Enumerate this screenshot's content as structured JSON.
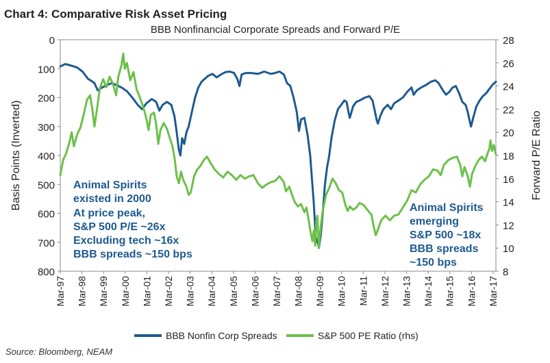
{
  "header": {
    "chart_label": "Chart 4: Comparative Risk Asset Pricing"
  },
  "source": "Source: Bloomberg, NEAM",
  "colors": {
    "spreads": "#1d5a8f",
    "pe": "#6cc04a",
    "annotation": "#1d5a8f",
    "text": "#222222",
    "axis": "#666666"
  },
  "chart_data": {
    "type": "line",
    "title": "BBB Nonfinancial Corporate Spreads and Forward P/E",
    "ylabel": "Basis Points (Inverted)",
    "y2label": "Forward P/E Ratio",
    "ylim": [
      0,
      800
    ],
    "y_inverted": true,
    "y2lim": [
      8,
      28
    ],
    "xlim": [
      1997.17,
      2017.3
    ],
    "y_ticks": [
      "0",
      "100",
      "200",
      "300",
      "400",
      "500",
      "600",
      "700",
      "800"
    ],
    "y2_ticks": [
      "8",
      "10",
      "12",
      "14",
      "16",
      "18",
      "20",
      "22",
      "24",
      "26",
      "28"
    ],
    "x_ticks": [
      {
        "label": "Mar-97",
        "x": 1997.17
      },
      {
        "label": "Mar-98",
        "x": 1998.17
      },
      {
        "label": "Mar-99",
        "x": 1999.17
      },
      {
        "label": "Mar-00",
        "x": 2000.17
      },
      {
        "label": "Mar-01",
        "x": 2001.17
      },
      {
        "label": "Mar-02",
        "x": 2002.17
      },
      {
        "label": "Mar-03",
        "x": 2003.17
      },
      {
        "label": "Mar-04",
        "x": 2004.17
      },
      {
        "label": "Mar-05",
        "x": 2005.17
      },
      {
        "label": "Mar-06",
        "x": 2006.17
      },
      {
        "label": "Mar-07",
        "x": 2007.17
      },
      {
        "label": "Mar-08",
        "x": 2008.17
      },
      {
        "label": "Mar-09",
        "x": 2009.17
      },
      {
        "label": "Mar-10",
        "x": 2010.17
      },
      {
        "label": "Mar-11",
        "x": 2011.17
      },
      {
        "label": "Mar-12",
        "x": 2012.17
      },
      {
        "label": "Mar-13",
        "x": 2013.17
      },
      {
        "label": "Mar-14",
        "x": 2014.17
      },
      {
        "label": "Mar-15",
        "x": 2015.17
      },
      {
        "label": "Mar-16",
        "x": 2016.17
      },
      {
        "label": "Mar-17",
        "x": 2017.17
      }
    ],
    "series": [
      {
        "name": "BBB Nonfin Corp Spreads",
        "axis": "left",
        "color": "#1d5a8f",
        "points": [
          [
            1997.17,
            92
          ],
          [
            1997.4,
            84
          ],
          [
            1997.7,
            90
          ],
          [
            1997.95,
            96
          ],
          [
            1998.2,
            110
          ],
          [
            1998.45,
            135
          ],
          [
            1998.6,
            142
          ],
          [
            1998.75,
            150
          ],
          [
            1998.9,
            175
          ],
          [
            1999.1,
            165
          ],
          [
            1999.3,
            158
          ],
          [
            1999.55,
            150
          ],
          [
            1999.8,
            158
          ],
          [
            2000.0,
            165
          ],
          [
            2000.25,
            178
          ],
          [
            2000.5,
            200
          ],
          [
            2000.75,
            225
          ],
          [
            2000.95,
            240
          ],
          [
            2001.15,
            220
          ],
          [
            2001.4,
            205
          ],
          [
            2001.6,
            215
          ],
          [
            2001.75,
            245
          ],
          [
            2001.9,
            225
          ],
          [
            2002.1,
            215
          ],
          [
            2002.3,
            225
          ],
          [
            2002.45,
            265
          ],
          [
            2002.55,
            320
          ],
          [
            2002.65,
            380
          ],
          [
            2002.72,
            400
          ],
          [
            2002.8,
            340
          ],
          [
            2002.9,
            360
          ],
          [
            2003.0,
            320
          ],
          [
            2003.1,
            300
          ],
          [
            2003.25,
            250
          ],
          [
            2003.4,
            200
          ],
          [
            2003.55,
            165
          ],
          [
            2003.7,
            145
          ],
          [
            2003.85,
            135
          ],
          [
            2004.0,
            125
          ],
          [
            2004.2,
            118
          ],
          [
            2004.4,
            130
          ],
          [
            2004.6,
            120
          ],
          [
            2004.8,
            112
          ],
          [
            2005.0,
            110
          ],
          [
            2005.2,
            115
          ],
          [
            2005.35,
            135
          ],
          [
            2005.45,
            160
          ],
          [
            2005.55,
            120
          ],
          [
            2005.75,
            115
          ],
          [
            2006.0,
            115
          ],
          [
            2006.3,
            118
          ],
          [
            2006.6,
            110
          ],
          [
            2006.9,
            118
          ],
          [
            2007.1,
            115
          ],
          [
            2007.3,
            110
          ],
          [
            2007.5,
            120
          ],
          [
            2007.65,
            150
          ],
          [
            2007.8,
            160
          ],
          [
            2007.95,
            200
          ],
          [
            2008.1,
            250
          ],
          [
            2008.2,
            315
          ],
          [
            2008.3,
            275
          ],
          [
            2008.45,
            270
          ],
          [
            2008.6,
            330
          ],
          [
            2008.72,
            400
          ],
          [
            2008.8,
            480
          ],
          [
            2008.88,
            560
          ],
          [
            2008.95,
            650
          ],
          [
            2009.0,
            700
          ],
          [
            2009.05,
            690
          ],
          [
            2009.12,
            720
          ],
          [
            2009.2,
            680
          ],
          [
            2009.3,
            600
          ],
          [
            2009.4,
            500
          ],
          [
            2009.5,
            440
          ],
          [
            2009.6,
            400
          ],
          [
            2009.7,
            340
          ],
          [
            2009.85,
            280
          ],
          [
            2010.0,
            240
          ],
          [
            2010.15,
            225
          ],
          [
            2010.3,
            210
          ],
          [
            2010.4,
            215
          ],
          [
            2010.5,
            255
          ],
          [
            2010.55,
            270
          ],
          [
            2010.7,
            230
          ],
          [
            2010.85,
            215
          ],
          [
            2011.0,
            210
          ],
          [
            2011.25,
            200
          ],
          [
            2011.45,
            195
          ],
          [
            2011.6,
            210
          ],
          [
            2011.7,
            245
          ],
          [
            2011.8,
            280
          ],
          [
            2011.85,
            290
          ],
          [
            2011.95,
            265
          ],
          [
            2012.1,
            240
          ],
          [
            2012.3,
            225
          ],
          [
            2012.45,
            240
          ],
          [
            2012.6,
            220
          ],
          [
            2012.8,
            210
          ],
          [
            2013.0,
            200
          ],
          [
            2013.2,
            180
          ],
          [
            2013.4,
            165
          ],
          [
            2013.5,
            190
          ],
          [
            2013.65,
            175
          ],
          [
            2013.85,
            165
          ],
          [
            2014.1,
            155
          ],
          [
            2014.3,
            145
          ],
          [
            2014.5,
            140
          ],
          [
            2014.65,
            150
          ],
          [
            2014.85,
            175
          ],
          [
            2015.0,
            190
          ],
          [
            2015.15,
            180
          ],
          [
            2015.3,
            165
          ],
          [
            2015.45,
            160
          ],
          [
            2015.6,
            185
          ],
          [
            2015.75,
            215
          ],
          [
            2015.9,
            225
          ],
          [
            2016.0,
            250
          ],
          [
            2016.1,
            285
          ],
          [
            2016.15,
            300
          ],
          [
            2016.25,
            270
          ],
          [
            2016.4,
            230
          ],
          [
            2016.55,
            210
          ],
          [
            2016.7,
            195
          ],
          [
            2016.85,
            185
          ],
          [
            2017.0,
            170
          ],
          [
            2017.15,
            155
          ],
          [
            2017.3,
            145
          ]
        ]
      },
      {
        "name": "S&P 500 PE Ratio (rhs)",
        "axis": "right",
        "color": "#6cc04a",
        "points": [
          [
            1997.17,
            16.3
          ],
          [
            1997.3,
            17.6
          ],
          [
            1997.45,
            18.2
          ],
          [
            1997.6,
            19.2
          ],
          [
            1997.7,
            20.0
          ],
          [
            1997.8,
            18.8
          ],
          [
            1997.95,
            19.8
          ],
          [
            1998.1,
            20.4
          ],
          [
            1998.25,
            21.5
          ],
          [
            1998.4,
            22.8
          ],
          [
            1998.55,
            23.2
          ],
          [
            1998.65,
            22.0
          ],
          [
            1998.75,
            20.5
          ],
          [
            1998.85,
            21.8
          ],
          [
            1999.0,
            23.8
          ],
          [
            1999.15,
            24.6
          ],
          [
            1999.3,
            23.9
          ],
          [
            1999.45,
            24.8
          ],
          [
            1999.6,
            24.2
          ],
          [
            1999.75,
            23.2
          ],
          [
            1999.85,
            24.8
          ],
          [
            2000.0,
            25.8
          ],
          [
            2000.08,
            26.8
          ],
          [
            2000.15,
            25.5
          ],
          [
            2000.25,
            26.0
          ],
          [
            2000.4,
            24.5
          ],
          [
            2000.55,
            25.2
          ],
          [
            2000.7,
            23.7
          ],
          [
            2000.85,
            23.0
          ],
          [
            2001.0,
            22.2
          ],
          [
            2001.15,
            21.2
          ],
          [
            2001.25,
            20.2
          ],
          [
            2001.35,
            21.5
          ],
          [
            2001.5,
            21.7
          ],
          [
            2001.6,
            20.7
          ],
          [
            2001.7,
            19.0
          ],
          [
            2001.8,
            20.2
          ],
          [
            2001.95,
            20.8
          ],
          [
            2002.1,
            20.3
          ],
          [
            2002.2,
            19.7
          ],
          [
            2002.35,
            18.8
          ],
          [
            2002.45,
            17.8
          ],
          [
            2002.55,
            16.2
          ],
          [
            2002.65,
            15.6
          ],
          [
            2002.75,
            16.6
          ],
          [
            2002.85,
            15.9
          ],
          [
            2003.0,
            15.3
          ],
          [
            2003.1,
            14.6
          ],
          [
            2003.2,
            14.8
          ],
          [
            2003.35,
            16.2
          ],
          [
            2003.5,
            16.8
          ],
          [
            2003.65,
            17.1
          ],
          [
            2003.8,
            17.6
          ],
          [
            2003.95,
            17.9
          ],
          [
            2004.1,
            17.4
          ],
          [
            2004.3,
            16.8
          ],
          [
            2004.5,
            16.4
          ],
          [
            2004.7,
            16.1
          ],
          [
            2004.9,
            16.6
          ],
          [
            2005.1,
            16.3
          ],
          [
            2005.3,
            15.9
          ],
          [
            2005.5,
            16.3
          ],
          [
            2005.7,
            16.0
          ],
          [
            2005.9,
            16.2
          ],
          [
            2006.1,
            16.3
          ],
          [
            2006.3,
            15.6
          ],
          [
            2006.5,
            15.2
          ],
          [
            2006.7,
            15.5
          ],
          [
            2006.9,
            15.7
          ],
          [
            2007.1,
            15.8
          ],
          [
            2007.3,
            16.2
          ],
          [
            2007.5,
            15.7
          ],
          [
            2007.6,
            14.9
          ],
          [
            2007.75,
            15.3
          ],
          [
            2007.9,
            14.5
          ],
          [
            2008.0,
            14.0
          ],
          [
            2008.15,
            13.6
          ],
          [
            2008.3,
            13.8
          ],
          [
            2008.45,
            13.1
          ],
          [
            2008.55,
            13.5
          ],
          [
            2008.65,
            12.4
          ],
          [
            2008.75,
            11.2
          ],
          [
            2008.82,
            10.6
          ],
          [
            2008.88,
            11.5
          ],
          [
            2008.95,
            10.2
          ],
          [
            2009.0,
            12.3
          ],
          [
            2009.05,
            12.8
          ],
          [
            2009.12,
            10.0
          ],
          [
            2009.2,
            11.8
          ],
          [
            2009.3,
            13.2
          ],
          [
            2009.45,
            14.6
          ],
          [
            2009.6,
            15.2
          ],
          [
            2009.75,
            16.0
          ],
          [
            2009.9,
            15.6
          ],
          [
            2010.05,
            15.0
          ],
          [
            2010.2,
            14.8
          ],
          [
            2010.35,
            13.7
          ],
          [
            2010.45,
            13.2
          ],
          [
            2010.55,
            13.6
          ],
          [
            2010.7,
            13.3
          ],
          [
            2010.85,
            13.5
          ],
          [
            2011.0,
            13.9
          ],
          [
            2011.2,
            13.7
          ],
          [
            2011.4,
            13.2
          ],
          [
            2011.55,
            12.9
          ],
          [
            2011.65,
            11.9
          ],
          [
            2011.75,
            11.1
          ],
          [
            2011.85,
            11.6
          ],
          [
            2012.0,
            12.4
          ],
          [
            2012.2,
            12.8
          ],
          [
            2012.4,
            12.4
          ],
          [
            2012.6,
            12.8
          ],
          [
            2012.8,
            12.9
          ],
          [
            2013.0,
            13.5
          ],
          [
            2013.2,
            14.1
          ],
          [
            2013.4,
            15.0
          ],
          [
            2013.6,
            14.8
          ],
          [
            2013.8,
            15.5
          ],
          [
            2014.0,
            15.9
          ],
          [
            2014.2,
            16.2
          ],
          [
            2014.4,
            16.8
          ],
          [
            2014.6,
            16.7
          ],
          [
            2014.75,
            16.3
          ],
          [
            2014.9,
            17.2
          ],
          [
            2015.1,
            17.6
          ],
          [
            2015.3,
            17.8
          ],
          [
            2015.5,
            17.9
          ],
          [
            2015.65,
            17.2
          ],
          [
            2015.75,
            16.2
          ],
          [
            2015.85,
            17.0
          ],
          [
            2016.0,
            16.2
          ],
          [
            2016.1,
            15.3
          ],
          [
            2016.2,
            16.4
          ],
          [
            2016.35,
            17.1
          ],
          [
            2016.5,
            17.6
          ],
          [
            2016.65,
            17.9
          ],
          [
            2016.8,
            17.5
          ],
          [
            2016.9,
            18.1
          ],
          [
            2017.0,
            18.6
          ],
          [
            2017.05,
            19.3
          ],
          [
            2017.12,
            18.4
          ],
          [
            2017.2,
            18.9
          ],
          [
            2017.3,
            18.1
          ]
        ]
      }
    ],
    "legend": [
      "BBB Nonfin Corp Spreads",
      "S&P 500 PE Ratio (rhs)"
    ],
    "legend_placement": "bottom-center",
    "annotations": [
      {
        "id": "left",
        "lines": [
          "Animal Spirits",
          "existed in 2000",
          "At price peak,",
          "S&P 500 P/E ~26x",
          "Excluding tech ~16x",
          "BBB spreads ~150 bps"
        ]
      },
      {
        "id": "right",
        "lines": [
          "Animal Spirits",
          "emerging",
          "S&P 500 ~18x",
          "BBB spreads",
          "~150 bps"
        ]
      }
    ]
  }
}
